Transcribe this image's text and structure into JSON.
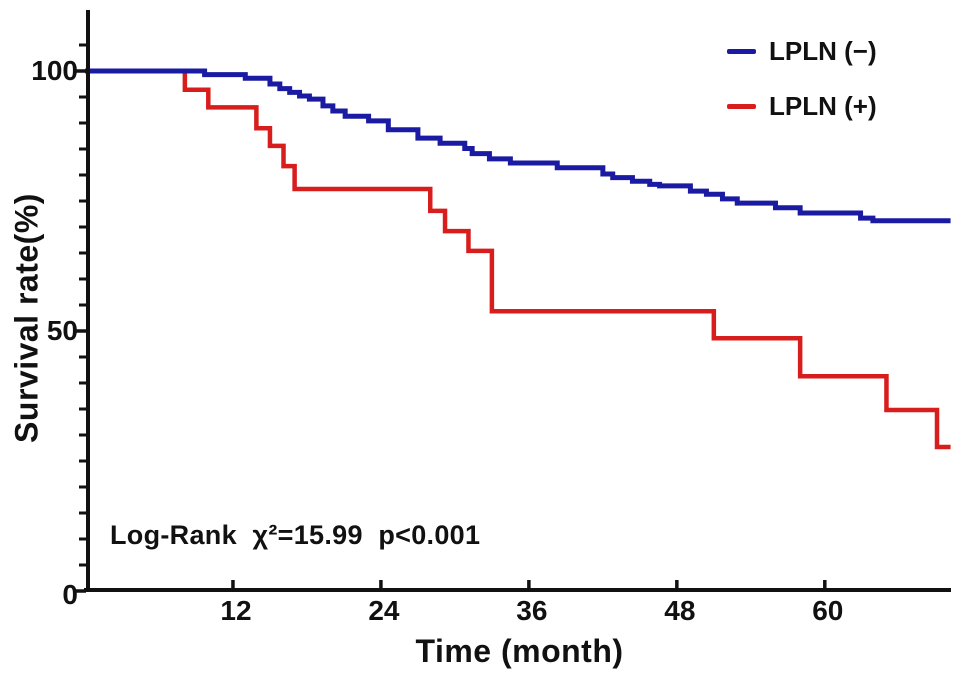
{
  "figure": {
    "y_axis": {
      "label": "Survival rate(%)"
    },
    "x_axis": {
      "label": "Time (month)"
    },
    "annotation": "Log-Rank  χ²=15.99  p<0.001",
    "legend": [
      {
        "label": "LPLN (−)",
        "color": "#1a1aa2"
      },
      {
        "label": "LPLN (+)",
        "color": "#d81d1d"
      }
    ]
  },
  "chart_data": {
    "type": "line",
    "subtype": "kaplan-meier-step",
    "title": "",
    "xlabel": "Time (month)",
    "ylabel": "Survival rate(%)",
    "xlim": [
      0,
      70.5
    ],
    "ylim": [
      0,
      105
    ],
    "grid": false,
    "legend_position": "top-right",
    "annotation": "Log-Rank  χ²=15.99  p<0.001",
    "x_ticks": [
      12,
      24,
      36,
      48,
      60
    ],
    "x_tick_labels": [
      "12",
      "24",
      "36",
      "48",
      "60"
    ],
    "y_ticks": [
      0,
      50,
      100
    ],
    "y_tick_labels": [
      "0",
      "50",
      "100"
    ],
    "y_minor_tick_step": 5,
    "axis_color": "#111111",
    "series": [
      {
        "name": "LPLN (−)",
        "color": "#1a1aa2",
        "stroke_width": 5,
        "points": [
          [
            0,
            100
          ],
          [
            9.7,
            99.3
          ],
          [
            13,
            98.6
          ],
          [
            15,
            97.5
          ],
          [
            15.8,
            96.6
          ],
          [
            16.6,
            95.9
          ],
          [
            17.4,
            95.2
          ],
          [
            18.2,
            94.6
          ],
          [
            19.3,
            93.3
          ],
          [
            20.1,
            92.3
          ],
          [
            21.1,
            91.3
          ],
          [
            23,
            90.4
          ],
          [
            24.6,
            88.7
          ],
          [
            27,
            87.1
          ],
          [
            28.8,
            86.1
          ],
          [
            30.8,
            85.1
          ],
          [
            31.4,
            84.1
          ],
          [
            32.8,
            83.1
          ],
          [
            34.5,
            82.3
          ],
          [
            38.3,
            81.4
          ],
          [
            42,
            80.2
          ],
          [
            42.8,
            79.5
          ],
          [
            44.4,
            78.8
          ],
          [
            45.8,
            78.2
          ],
          [
            46.6,
            77.9
          ],
          [
            49.1,
            76.9
          ],
          [
            50.4,
            76.3
          ],
          [
            51.7,
            75.4
          ],
          [
            52.9,
            74.6
          ],
          [
            56,
            73.7
          ],
          [
            58,
            72.7
          ],
          [
            62.9,
            71.7
          ],
          [
            63.9,
            71.2
          ],
          [
            70.2,
            71.2
          ]
        ]
      },
      {
        "name": "LPLN (+)",
        "color": "#d81d1d",
        "stroke_width": 4.5,
        "points": [
          [
            0,
            100
          ],
          [
            8.1,
            96.4
          ],
          [
            10,
            93
          ],
          [
            13.9,
            89
          ],
          [
            15,
            85.6
          ],
          [
            16.1,
            81.7
          ],
          [
            17,
            77.3
          ],
          [
            28,
            73.1
          ],
          [
            29.2,
            69.2
          ],
          [
            31.1,
            65.4
          ],
          [
            33,
            53.8
          ],
          [
            51,
            48.6
          ],
          [
            58,
            41.3
          ],
          [
            65,
            34.8
          ],
          [
            69.1,
            27.7
          ],
          [
            70.2,
            27.7
          ]
        ]
      }
    ]
  }
}
